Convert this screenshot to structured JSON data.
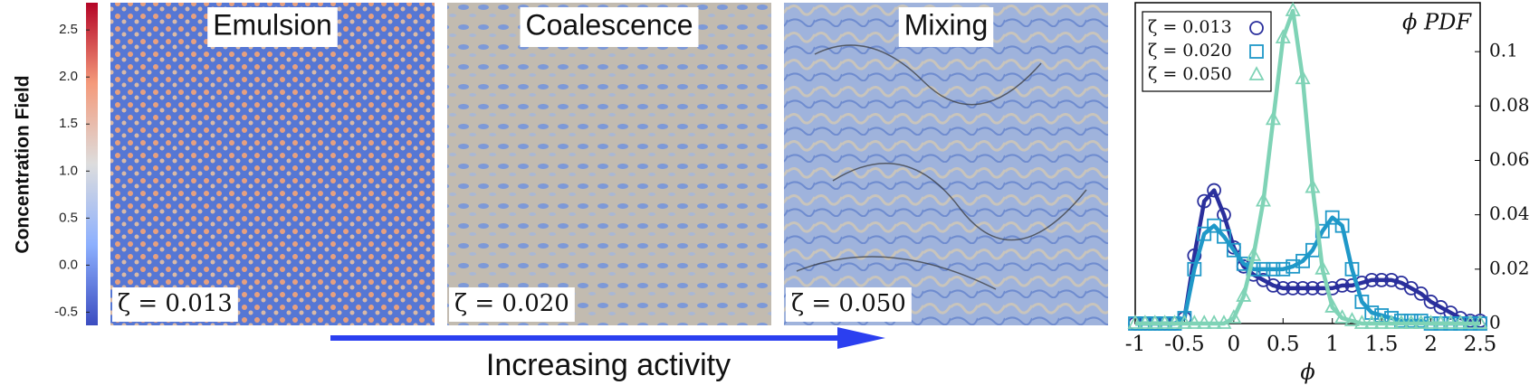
{
  "chart_data": [
    {
      "type": "colorbar",
      "title": "Concentration Field",
      "ylim": [
        -0.64,
        2.79
      ],
      "yticks": [
        -0.5,
        {
          "value": 0,
          "label": "0.0"
        },
        0.5,
        {
          "value": 1,
          "label": "1.0"
        },
        1.5,
        {
          "value": 2,
          "label": "2.0"
        },
        2.5
      ],
      "colors": [
        "#3b4cc0",
        "#8db0fe",
        "#dddddd",
        "#f49a7b",
        "#b40426"
      ]
    },
    {
      "type": "line",
      "title": "ϕ PDF",
      "x_label": "ϕ",
      "x": [
        -1,
        -0.9,
        -0.8,
        -0.7,
        -0.6,
        -0.5,
        -0.4,
        -0.3,
        -0.2,
        -0.1,
        0,
        0.1,
        0.2,
        0.3,
        0.4,
        0.5,
        0.6,
        0.7,
        0.8,
        0.9,
        1.0,
        1.1,
        1.2,
        1.3,
        1.4,
        1.5,
        1.6,
        1.7,
        1.8,
        1.9,
        2.0,
        2.1,
        2.2,
        2.3,
        2.4,
        2.5
      ],
      "series": [
        {
          "name": "ζ = 0.013",
          "color": "#2a2f9c",
          "marker": "circle",
          "values": [
            0,
            0,
            0,
            0,
            0,
            0.002,
            0.025,
            0.045,
            0.049,
            0.04,
            0.028,
            0.021,
            0.018,
            0.016,
            0.014,
            0.013,
            0.013,
            0.013,
            0.013,
            0.013,
            0.013,
            0.014,
            0.014,
            0.015,
            0.016,
            0.016,
            0.016,
            0.015,
            0.013,
            0.011,
            0.008,
            0.006,
            0.004,
            0.002,
            0.001,
            0.001
          ]
        },
        {
          "name": "ζ = 0.020",
          "color": "#1f98c8",
          "marker": "square",
          "values": [
            0,
            0,
            0,
            0,
            0,
            0.002,
            0.02,
            0.033,
            0.036,
            0.032,
            0.027,
            0.022,
            0.02,
            0.02,
            0.02,
            0.02,
            0.021,
            0.023,
            0.027,
            0.034,
            0.039,
            0.036,
            0.02,
            0.008,
            0.004,
            0.003,
            0.002,
            0.001,
            0.001,
            0.001,
            0,
            0,
            0,
            0,
            0,
            0
          ]
        },
        {
          "name": "ζ = 0.050",
          "color": "#7fd3b6",
          "marker": "triangle",
          "values": [
            0,
            0,
            0,
            0,
            0,
            0,
            0,
            0,
            0,
            0,
            0.002,
            0.01,
            0.025,
            0.045,
            0.075,
            0.105,
            0.115,
            0.09,
            0.05,
            0.02,
            0.006,
            0.002,
            0.001,
            0,
            0,
            0,
            0,
            0,
            0,
            0,
            0,
            0,
            0,
            0,
            0,
            0
          ]
        }
      ],
      "xlim": [
        -1,
        2.5
      ],
      "xticks": [
        -1,
        -0.5,
        0,
        0.5,
        1,
        1.5,
        2,
        2.5
      ],
      "ylim": [
        0,
        0.118
      ],
      "yticks": [
        0,
        0.02,
        0.04,
        0.06,
        0.08,
        0.1
      ],
      "legend": "upper left"
    }
  ],
  "panels": [
    {
      "title": "Emulsion",
      "label": "ζ = 0.013"
    },
    {
      "title": "Coalescence",
      "label": "ζ = 0.020"
    },
    {
      "title": "Mixing",
      "label": "ζ = 0.050"
    }
  ],
  "arrow_label": "Increasing activity"
}
